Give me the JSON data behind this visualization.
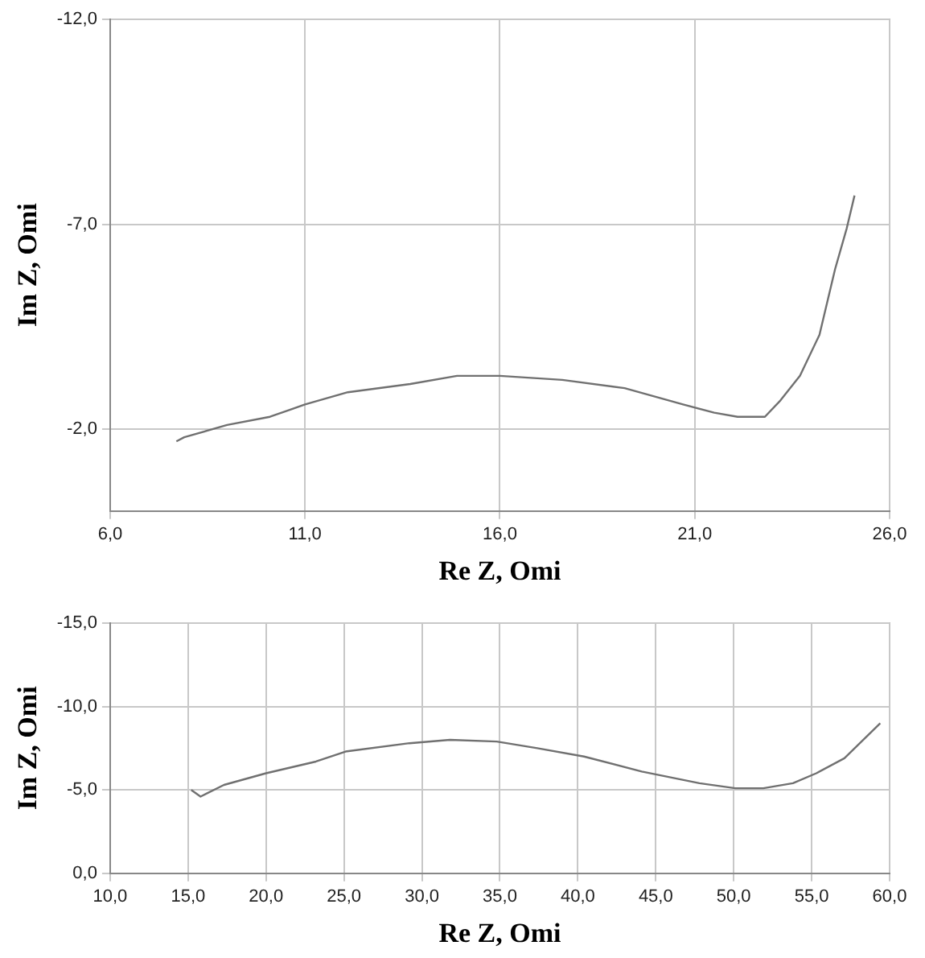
{
  "chart_data": [
    {
      "type": "line",
      "xlabel": "Re Z, Omi",
      "ylabel": "Im Z, Omi",
      "xlim": [
        6,
        26
      ],
      "ylim": [
        0,
        -12
      ],
      "xticks": [
        {
          "value": 6,
          "label": "6,0"
        },
        {
          "value": 11,
          "label": "11,0"
        },
        {
          "value": 16,
          "label": "16,0"
        },
        {
          "value": 21,
          "label": "21,0"
        },
        {
          "value": 26,
          "label": "26,0"
        }
      ],
      "yticks": [
        {
          "value": -12,
          "label": "-12,0"
        },
        {
          "value": -7,
          "label": "-7,0"
        },
        {
          "value": -2,
          "label": "-2,0"
        }
      ],
      "grid": true,
      "legend": false,
      "marker": "none",
      "line_style": "solid",
      "series": [
        {
          "color": "#707070",
          "x": [
            7.7,
            7.9,
            9.0,
            10.1,
            11.0,
            12.1,
            13.7,
            14.9,
            16.0,
            17.6,
            19.2,
            20.7,
            21.5,
            22.1,
            22.8,
            23.2,
            23.7,
            24.2,
            24.6,
            24.9,
            25.1
          ],
          "values": [
            -1.7,
            -1.8,
            -2.1,
            -2.3,
            -2.6,
            -2.9,
            -3.1,
            -3.3,
            -3.3,
            -3.2,
            -3.0,
            -2.6,
            -2.4,
            -2.3,
            -2.3,
            -2.7,
            -3.3,
            -4.3,
            -5.9,
            -6.9,
            -7.7
          ]
        }
      ]
    },
    {
      "type": "line",
      "xlabel": "Re Z, Omi",
      "ylabel": "Im Z, Omi",
      "xlim": [
        10,
        60
      ],
      "ylim": [
        0,
        -15
      ],
      "xticks": [
        {
          "value": 10,
          "label": "10,0"
        },
        {
          "value": 15,
          "label": "15,0"
        },
        {
          "value": 20,
          "label": "20,0"
        },
        {
          "value": 25,
          "label": "25,0"
        },
        {
          "value": 30,
          "label": "30,0"
        },
        {
          "value": 35,
          "label": "35,0"
        },
        {
          "value": 40,
          "label": "40,0"
        },
        {
          "value": 45,
          "label": "45,0"
        },
        {
          "value": 50,
          "label": "50,0"
        },
        {
          "value": 55,
          "label": "55,0"
        },
        {
          "value": 60,
          "label": "60,0"
        }
      ],
      "yticks": [
        {
          "value": 0,
          "label": "0,0"
        },
        {
          "value": -5,
          "label": "-5,0"
        },
        {
          "value": -10,
          "label": "-10,0"
        },
        {
          "value": -15,
          "label": "-15,0"
        }
      ],
      "grid": true,
      "legend": false,
      "marker": "none",
      "line_style": "solid",
      "series": [
        {
          "color": "#707070",
          "x": [
            15.2,
            15.8,
            17.3,
            20.0,
            23.2,
            25.1,
            29.2,
            31.8,
            34.8,
            37.4,
            40.4,
            44.1,
            47.8,
            50.1,
            51.9,
            53.8,
            55.3,
            57.1,
            59.4
          ],
          "values": [
            -5.0,
            -4.6,
            -5.3,
            -6.0,
            -6.7,
            -7.3,
            -7.8,
            -8.0,
            -7.9,
            -7.5,
            -7.0,
            -6.1,
            -5.4,
            -5.1,
            -5.1,
            -5.4,
            -6.0,
            -6.9,
            -9.0
          ]
        }
      ]
    }
  ]
}
